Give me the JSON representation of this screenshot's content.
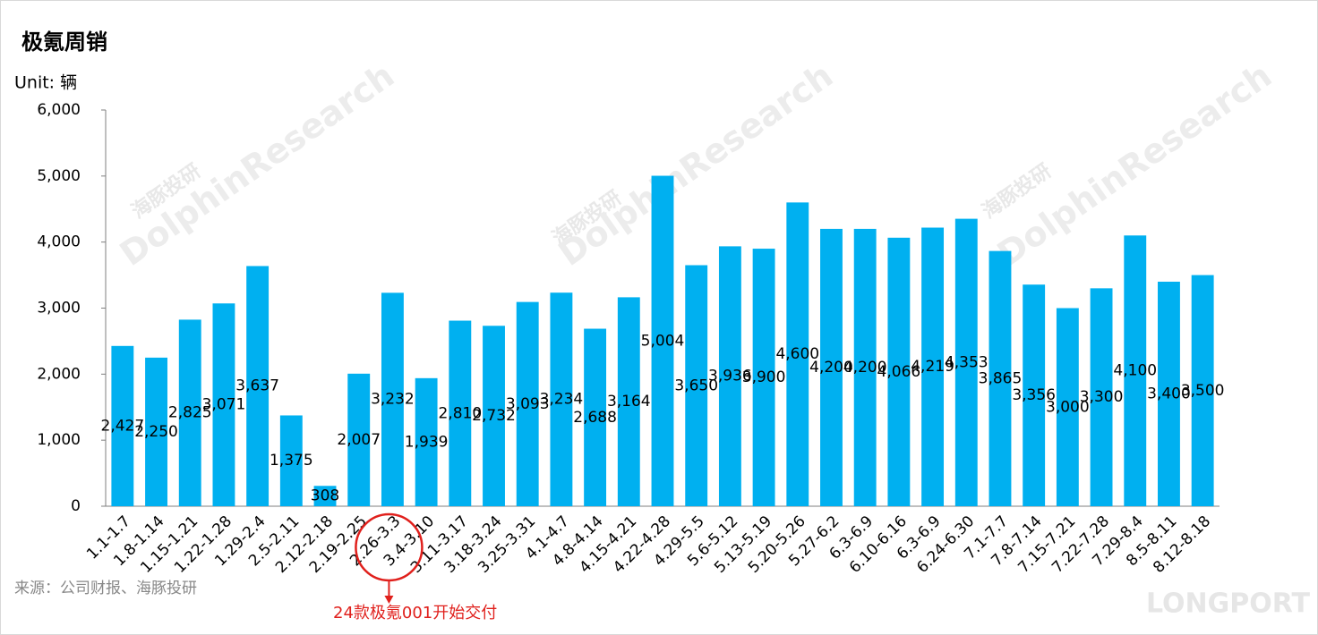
{
  "chart_data": {
    "type": "bar",
    "title": "极氪周销",
    "unit_label": "Unit: 辆",
    "source": "来源：公司财报、海豚投研",
    "annotation": "24款极氪001开始交付",
    "watermarks": [
      "海豚投研",
      "DolphinResearch",
      "LONGPORT"
    ],
    "color": "#00b0f0",
    "grid": false,
    "categories": [
      "1.1-1.7",
      "1.8-1.14",
      "1.15-1.21",
      "1.22-1.28",
      "1.29-2.4",
      "2.5-2.11",
      "2.12-2.18",
      "2.19-2.25",
      "2.26-3.3",
      "3.4-3.10",
      "3.11-3.17",
      "3.18-3.24",
      "3.25-3.31",
      "4.1-4.7",
      "4.8-4.14",
      "4.15-4.21",
      "4.22-4.28",
      "4.29-5.5",
      "5.6-5.12",
      "5.13-5.19",
      "5.20-5.26",
      "5.27-6.2",
      "6.3-6.9",
      "6.10-6.16",
      "6.3-6.9",
      "6.24-6.30",
      "7.1-7.7",
      "7.8-7.14",
      "7.15-7.21",
      "7.22-7.28",
      "7.29-8.4",
      "8.5-8.11",
      "8.12-8.18"
    ],
    "values": [
      2427,
      2250,
      2825,
      3071,
      3637,
      1375,
      308,
      2007,
      3232,
      1939,
      2810,
      2732,
      3093,
      3234,
      2688,
      3164,
      5004,
      3650,
      3936,
      3900,
      4600,
      4200,
      4200,
      4066,
      4219,
      4353,
      3865,
      3356,
      3000,
      3300,
      4100,
      3400,
      3500
    ],
    "value_labels": [
      "2,427",
      "2,250",
      "2,825",
      "3,071",
      "3,637",
      "1,375",
      "308",
      "2,007",
      "3,232",
      "1,939",
      "2,810",
      "2,732",
      "3,093",
      "3,234",
      "2,688",
      "3,164",
      "5,004",
      "3,650",
      "3,936",
      "3,900",
      "4,600",
      "4,200",
      "4,200",
      "4,066",
      "4,219",
      "4,353",
      "3,865",
      "3,356",
      "3,000",
      "3,300",
      "4,100",
      "3,400",
      "3,500"
    ],
    "ylim": [
      0,
      6000
    ],
    "yticks": [
      0,
      {
        "value": 1000,
        "label": "1,000"
      },
      {
        "value": 2000,
        "label": "2,000"
      },
      {
        "value": 3000,
        "label": "3,000"
      },
      {
        "value": 4000,
        "label": "4,000"
      },
      {
        "value": 5000,
        "label": "5,000"
      },
      {
        "value": 6000,
        "label": "6,000"
      }
    ],
    "highlight_category": 8
  }
}
